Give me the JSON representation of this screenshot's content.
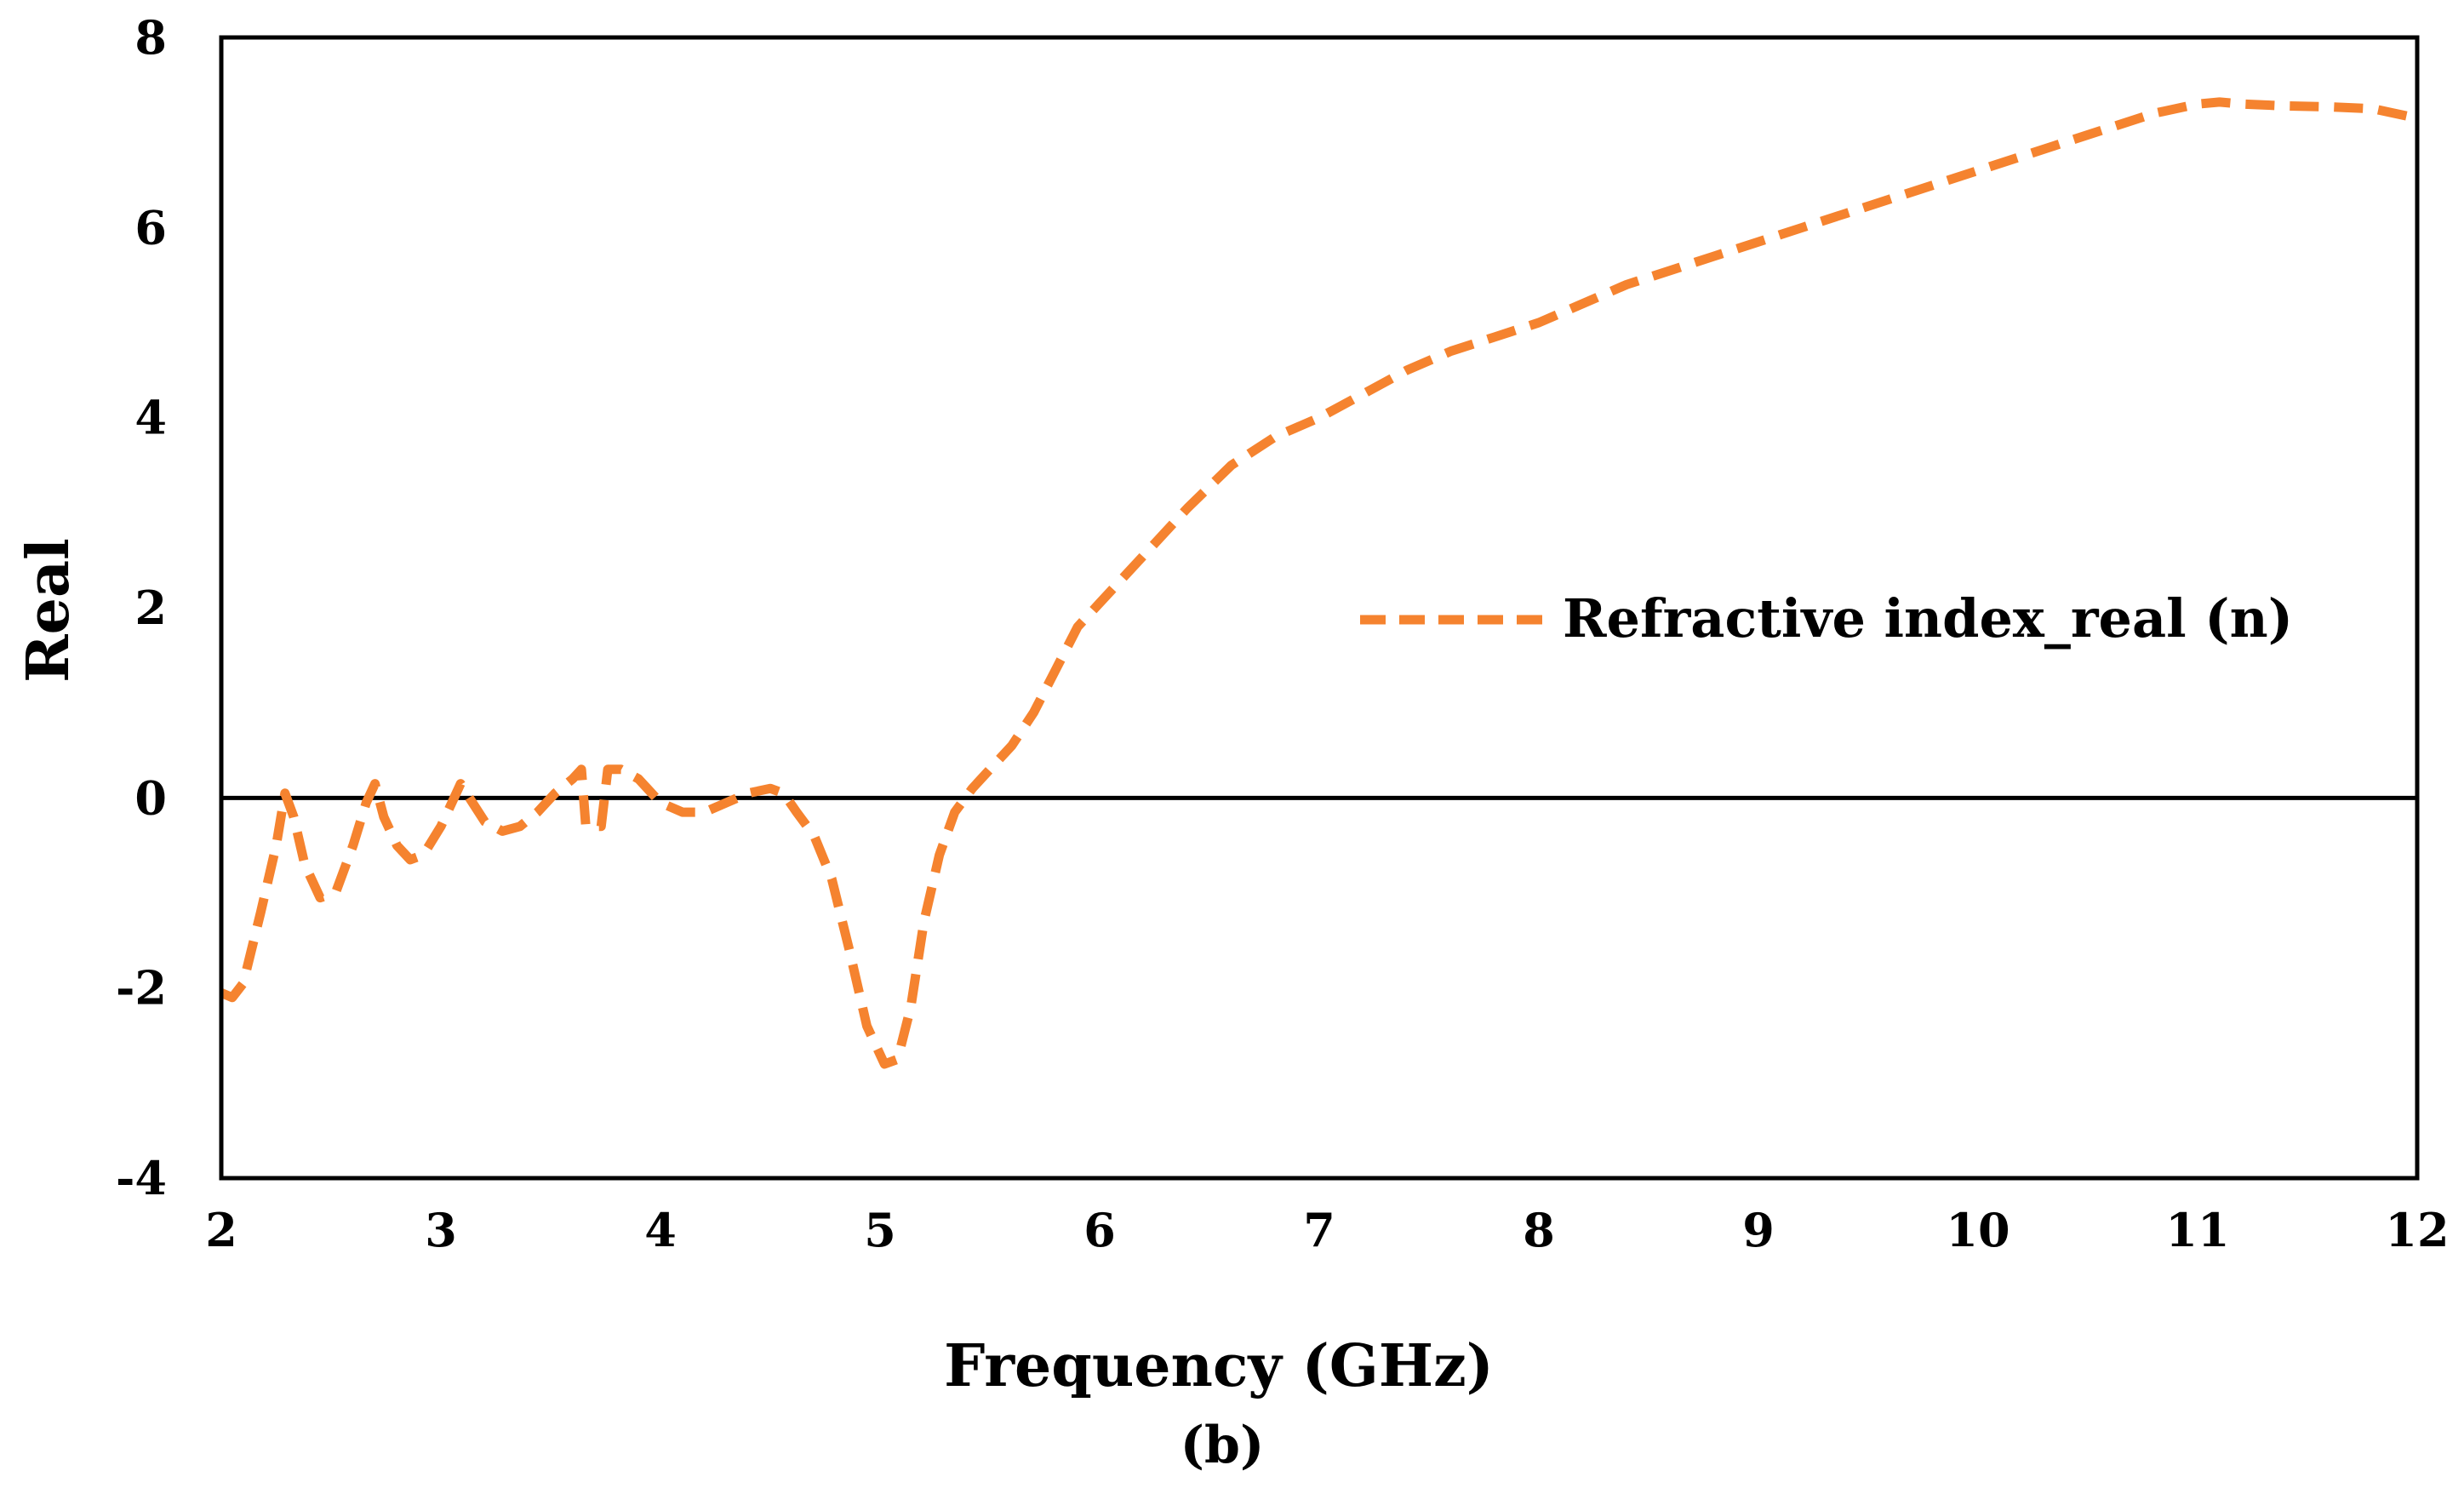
{
  "chart_data": {
    "type": "line",
    "title": "",
    "xlabel": "Frequency (GHz)",
    "ylabel": "Real",
    "caption": "(b)",
    "xlim": [
      2,
      12
    ],
    "ylim": [
      -4,
      8
    ],
    "x_ticks": [
      "2",
      "3",
      "4",
      "5",
      "6",
      "7",
      "8",
      "9",
      "10",
      "11",
      "12"
    ],
    "y_ticks": [
      "-4",
      "-2",
      "0",
      "2",
      "4",
      "6",
      "8"
    ],
    "x_tick_values": [
      2,
      3,
      4,
      5,
      6,
      7,
      8,
      9,
      10,
      11,
      12
    ],
    "y_tick_values": [
      -4,
      -2,
      0,
      2,
      4,
      6,
      8
    ],
    "zero_line": true,
    "legend": {
      "position": "center-right",
      "entries": [
        "Refractive index_real (n)"
      ]
    },
    "series": [
      {
        "name": "Refractive index_real (n)",
        "color": "#F5832F",
        "style": "dashed",
        "x": [
          2.0,
          2.05,
          2.1,
          2.18,
          2.25,
          2.29,
          2.33,
          2.38,
          2.45,
          2.52,
          2.6,
          2.66,
          2.7,
          2.74,
          2.8,
          2.86,
          2.92,
          3.0,
          3.06,
          3.09,
          3.13,
          3.2,
          3.28,
          3.36,
          3.44,
          3.52,
          3.6,
          3.64,
          3.66,
          3.7,
          3.73,
          3.76,
          3.82,
          3.9,
          4.0,
          4.1,
          4.2,
          4.3,
          4.4,
          4.5,
          4.56,
          4.62,
          4.7,
          4.78,
          4.86,
          4.94,
          5.02,
          5.08,
          5.14,
          5.2,
          5.27,
          5.34,
          5.42,
          5.5,
          5.6,
          5.7,
          5.8,
          5.9,
          6.0,
          6.2,
          6.4,
          6.6,
          6.8,
          7.0,
          7.2,
          7.4,
          7.6,
          7.8,
          8.0,
          8.2,
          8.4,
          8.6,
          8.8,
          9.0,
          9.2,
          9.4,
          9.6,
          9.8,
          10.0,
          10.2,
          10.4,
          10.6,
          10.8,
          11.0,
          11.1,
          11.2,
          11.4,
          11.6,
          11.8,
          12.0
        ],
        "y": [
          -2.05,
          -2.1,
          -1.95,
          -1.2,
          -0.5,
          0.05,
          -0.2,
          -0.7,
          -1.05,
          -1.0,
          -0.5,
          -0.05,
          0.15,
          -0.2,
          -0.5,
          -0.65,
          -0.6,
          -0.3,
          0.0,
          0.15,
          0.0,
          -0.25,
          -0.35,
          -0.3,
          -0.15,
          0.05,
          0.2,
          0.3,
          -0.3,
          -0.3,
          -0.3,
          0.3,
          0.3,
          0.2,
          -0.05,
          -0.15,
          -0.15,
          -0.05,
          0.05,
          0.1,
          0.05,
          -0.15,
          -0.4,
          -0.85,
          -1.6,
          -2.4,
          -2.8,
          -2.75,
          -2.2,
          -1.3,
          -0.6,
          -0.15,
          0.1,
          0.3,
          0.55,
          0.9,
          1.35,
          1.8,
          2.05,
          2.55,
          3.05,
          3.5,
          3.8,
          4.0,
          4.25,
          4.5,
          4.7,
          4.85,
          5.0,
          5.2,
          5.4,
          5.55,
          5.7,
          5.85,
          6.0,
          6.15,
          6.3,
          6.45,
          6.6,
          6.75,
          6.9,
          7.05,
          7.2,
          7.3,
          7.32,
          7.3,
          7.28,
          7.27,
          7.25,
          7.15
        ]
      }
    ]
  }
}
